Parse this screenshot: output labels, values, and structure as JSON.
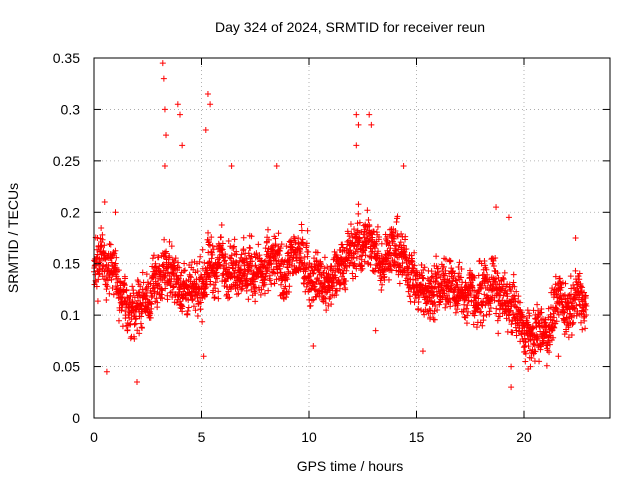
{
  "chart_data": {
    "type": "scatter",
    "title": "Day 324 of 2024, SRMTID for receiver reun",
    "xlabel": "GPS time / hours",
    "ylabel": "SRMTID / TECUs",
    "xlim": [
      0,
      24
    ],
    "ylim": [
      0,
      0.35
    ],
    "x_ticks": [
      0,
      5,
      10,
      15,
      20
    ],
    "x_tick_labels": [
      "0",
      "5",
      "10",
      "15",
      "20"
    ],
    "y_ticks": [
      0,
      0.05,
      0.1,
      0.15,
      0.2,
      0.25,
      0.3,
      0.35
    ],
    "y_tick_labels": [
      "0",
      "0.05",
      "0.1",
      "0.15",
      "0.2",
      "0.25",
      "0.3",
      "0.35"
    ],
    "grid": true,
    "marker": "+",
    "series": [
      {
        "name": "SRMTID",
        "color": "#ff0000",
        "x_range": [
          0,
          22.9
        ],
        "sample_interval_hours": 0.0083,
        "trend": [
          [
            0.0,
            0.145
          ],
          [
            0.5,
            0.15
          ],
          [
            1.0,
            0.14
          ],
          [
            1.5,
            0.11
          ],
          [
            2.0,
            0.1
          ],
          [
            2.5,
            0.11
          ],
          [
            3.0,
            0.14
          ],
          [
            3.5,
            0.15
          ],
          [
            4.0,
            0.13
          ],
          [
            4.5,
            0.12
          ],
          [
            5.0,
            0.13
          ],
          [
            5.5,
            0.14
          ],
          [
            6.0,
            0.15
          ],
          [
            7.0,
            0.15
          ],
          [
            8.0,
            0.14
          ],
          [
            9.0,
            0.15
          ],
          [
            9.5,
            0.15
          ],
          [
            10.0,
            0.14
          ],
          [
            11.0,
            0.13
          ],
          [
            11.5,
            0.15
          ],
          [
            12.0,
            0.16
          ],
          [
            12.5,
            0.17
          ],
          [
            13.0,
            0.16
          ],
          [
            14.0,
            0.16
          ],
          [
            14.5,
            0.15
          ],
          [
            15.0,
            0.13
          ],
          [
            15.5,
            0.12
          ],
          [
            16.0,
            0.13
          ],
          [
            17.0,
            0.12
          ],
          [
            18.0,
            0.12
          ],
          [
            18.5,
            0.13
          ],
          [
            19.0,
            0.12
          ],
          [
            19.5,
            0.11
          ],
          [
            20.0,
            0.09
          ],
          [
            20.5,
            0.075
          ],
          [
            21.0,
            0.09
          ],
          [
            21.5,
            0.1
          ],
          [
            22.0,
            0.11
          ],
          [
            22.5,
            0.12
          ],
          [
            22.9,
            0.11
          ]
        ],
        "spread": 0.035,
        "peaks": [
          {
            "x": 0.5,
            "y": 0.21
          },
          {
            "x": 0.6,
            "y": 0.045
          },
          {
            "x": 1.0,
            "y": 0.2
          },
          {
            "x": 2.0,
            "y": 0.035
          },
          {
            "x": 3.2,
            "y": 0.345
          },
          {
            "x": 3.25,
            "y": 0.33
          },
          {
            "x": 3.3,
            "y": 0.3
          },
          {
            "x": 3.35,
            "y": 0.275
          },
          {
            "x": 3.3,
            "y": 0.245
          },
          {
            "x": 3.9,
            "y": 0.305
          },
          {
            "x": 4.0,
            "y": 0.295
          },
          {
            "x": 4.1,
            "y": 0.265
          },
          {
            "x": 5.3,
            "y": 0.315
          },
          {
            "x": 5.4,
            "y": 0.305
          },
          {
            "x": 5.2,
            "y": 0.28
          },
          {
            "x": 5.1,
            "y": 0.06
          },
          {
            "x": 6.4,
            "y": 0.245
          },
          {
            "x": 8.5,
            "y": 0.245
          },
          {
            "x": 10.2,
            "y": 0.07
          },
          {
            "x": 12.2,
            "y": 0.295
          },
          {
            "x": 12.3,
            "y": 0.285
          },
          {
            "x": 12.2,
            "y": 0.265
          },
          {
            "x": 12.8,
            "y": 0.295
          },
          {
            "x": 12.9,
            "y": 0.285
          },
          {
            "x": 13.1,
            "y": 0.085
          },
          {
            "x": 14.4,
            "y": 0.245
          },
          {
            "x": 15.3,
            "y": 0.065
          },
          {
            "x": 18.7,
            "y": 0.205
          },
          {
            "x": 19.3,
            "y": 0.195
          },
          {
            "x": 19.4,
            "y": 0.03
          },
          {
            "x": 19.4,
            "y": 0.05
          },
          {
            "x": 20.3,
            "y": 0.05
          },
          {
            "x": 20.7,
            "y": 0.055
          },
          {
            "x": 21.6,
            "y": 0.06
          },
          {
            "x": 22.4,
            "y": 0.175
          }
        ]
      }
    ]
  }
}
